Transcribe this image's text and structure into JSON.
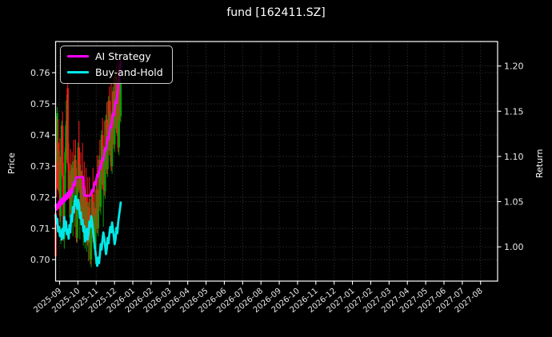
{
  "title": "fund [162411.SZ]",
  "legend": {
    "items": [
      {
        "label": "AI Strategy",
        "color": "#ff00ff"
      },
      {
        "label": "Buy-and-Hold",
        "color": "#00e8e8"
      }
    ]
  },
  "axes": {
    "left_label": "Price",
    "right_label": "Return"
  },
  "chart_data": {
    "type": "candlestick+line",
    "title": "fund [162411.SZ]",
    "background_color": "#000000",
    "grid": true,
    "legend_position": "upper-left",
    "x_axis": {
      "tick_labels": [
        "2025-09",
        "2025-10",
        "2025-11",
        "2025-12",
        "2026-01",
        "2026-02",
        "2026-03",
        "2026-04",
        "2026-05",
        "2026-06",
        "2026-07",
        "2026-08",
        "2026-09",
        "2026-10",
        "2026-11",
        "2026-12",
        "2027-01",
        "2027-02",
        "2027-03",
        "2027-04",
        "2027-05",
        "2027-06",
        "2027-07",
        "2027-08"
      ],
      "tick_rotation_deg": 40,
      "data_span_months": [
        -0.22,
        3.34
      ]
    },
    "price_axis": {
      "label": "Price",
      "tick_labels": [
        "0.70",
        "0.71",
        "0.72",
        "0.73",
        "0.74",
        "0.75",
        "0.76"
      ],
      "ticks": [
        0.7,
        0.71,
        0.72,
        0.73,
        0.74,
        0.75,
        0.76
      ],
      "range": [
        0.6931,
        0.77
      ]
    },
    "return_axis": {
      "label": "Return",
      "tick_labels": [
        "1.00",
        "1.05",
        "1.10",
        "1.15",
        "1.20"
      ],
      "ticks": [
        1.0,
        1.05,
        1.1,
        1.15,
        1.2
      ],
      "range": [
        0.9621,
        1.2271
      ]
    },
    "candle_up_color": "#00a000",
    "candle_down_color": "#ff1a1a",
    "candles_ohlc": [
      [
        0.715,
        0.716,
        0.7,
        0.701
      ],
      [
        0.744,
        0.746,
        0.72,
        0.723
      ],
      [
        0.7315,
        0.749,
        0.729,
        0.747
      ],
      [
        0.7375,
        0.745,
        0.722,
        0.7225
      ],
      [
        0.722,
        0.735,
        0.721,
        0.733
      ],
      [
        0.733,
        0.739,
        0.712,
        0.714
      ],
      [
        0.714,
        0.73,
        0.705,
        0.728
      ],
      [
        0.728,
        0.7445,
        0.727,
        0.743
      ],
      [
        0.743,
        0.7475,
        0.726,
        0.727
      ],
      [
        0.727,
        0.731,
        0.706,
        0.7065
      ],
      [
        0.7065,
        0.722,
        0.7035,
        0.7205
      ],
      [
        0.7205,
        0.736,
        0.719,
        0.7345
      ],
      [
        0.7345,
        0.7445,
        0.728,
        0.743
      ],
      [
        0.733,
        0.753,
        0.732,
        0.751
      ],
      [
        0.755,
        0.757,
        0.7305,
        0.731
      ],
      [
        0.731,
        0.7375,
        0.7195,
        0.72
      ],
      [
        0.72,
        0.7285,
        0.7135,
        0.727
      ],
      [
        0.727,
        0.7355,
        0.7145,
        0.716
      ],
      [
        0.716,
        0.7305,
        0.7145,
        0.729
      ],
      [
        0.729,
        0.7345,
        0.7185,
        0.72
      ],
      [
        0.72,
        0.7315,
        0.7075,
        0.7295
      ],
      [
        0.7295,
        0.7385,
        0.7225,
        0.7235
      ],
      [
        0.7235,
        0.7335,
        0.7105,
        0.732
      ],
      [
        0.732,
        0.7385,
        0.7245,
        0.7255
      ],
      [
        0.7255,
        0.7295,
        0.7055,
        0.707
      ],
      [
        0.707,
        0.7245,
        0.7055,
        0.723
      ],
      [
        0.723,
        0.7375,
        0.722,
        0.736
      ],
      [
        0.736,
        0.7445,
        0.7215,
        0.7225
      ],
      [
        0.7225,
        0.7305,
        0.7065,
        0.7285
      ],
      [
        0.7285,
        0.7345,
        0.7135,
        0.7145
      ],
      [
        0.7145,
        0.7285,
        0.7135,
        0.727
      ],
      [
        0.727,
        0.7375,
        0.7125,
        0.7135
      ],
      [
        0.7135,
        0.7255,
        0.7045,
        0.7235
      ],
      [
        0.7235,
        0.7315,
        0.7095,
        0.7105
      ],
      [
        0.7105,
        0.7225,
        0.7035,
        0.721
      ],
      [
        0.721,
        0.7295,
        0.7075,
        0.7085
      ],
      [
        0.7085,
        0.7185,
        0.7025,
        0.717
      ],
      [
        0.717,
        0.7265,
        0.7045,
        0.7055
      ],
      [
        0.7055,
        0.7185,
        0.6995,
        0.7165
      ],
      [
        0.7165,
        0.7265,
        0.7105,
        0.7115
      ],
      [
        0.7115,
        0.7195,
        0.6985,
        0.7
      ],
      [
        0.7,
        0.7125,
        0.6975,
        0.711
      ],
      [
        0.711,
        0.7225,
        0.7095,
        0.721
      ],
      [
        0.721,
        0.7295,
        0.7055,
        0.707
      ],
      [
        0.707,
        0.7185,
        0.7035,
        0.7165
      ],
      [
        0.7165,
        0.7255,
        0.7015,
        0.7035
      ],
      [
        0.7035,
        0.7155,
        0.6985,
        0.714
      ],
      [
        0.714,
        0.7245,
        0.7125,
        0.7225
      ],
      [
        0.7225,
        0.7335,
        0.7085,
        0.71
      ],
      [
        0.71,
        0.7225,
        0.7075,
        0.721
      ],
      [
        0.721,
        0.7335,
        0.7195,
        0.732
      ],
      [
        0.732,
        0.7385,
        0.7155,
        0.717
      ],
      [
        0.717,
        0.7295,
        0.7145,
        0.728
      ],
      [
        0.728,
        0.7415,
        0.7265,
        0.74
      ],
      [
        0.74,
        0.7455,
        0.7225,
        0.724
      ],
      [
        0.724,
        0.7365,
        0.7105,
        0.735
      ],
      [
        0.735,
        0.7445,
        0.7205,
        0.722
      ],
      [
        0.722,
        0.7355,
        0.7195,
        0.734
      ],
      [
        0.734,
        0.7465,
        0.7325,
        0.745
      ],
      [
        0.745,
        0.7505,
        0.7275,
        0.729
      ],
      [
        0.729,
        0.7415,
        0.7265,
        0.74
      ],
      [
        0.74,
        0.7525,
        0.7385,
        0.751
      ],
      [
        0.751,
        0.7555,
        0.7335,
        0.735
      ],
      [
        0.735,
        0.7475,
        0.7315,
        0.746
      ],
      [
        0.746,
        0.7565,
        0.7285,
        0.73
      ],
      [
        0.73,
        0.7445,
        0.7275,
        0.743
      ],
      [
        0.743,
        0.7555,
        0.7415,
        0.754
      ],
      [
        0.754,
        0.7585,
        0.7355,
        0.737
      ],
      [
        0.737,
        0.7515,
        0.7345,
        0.75
      ],
      [
        0.75,
        0.7605,
        0.7465,
        0.759
      ],
      [
        0.759,
        0.7625,
        0.7405,
        0.742
      ],
      [
        0.742,
        0.7565,
        0.7395,
        0.755
      ],
      [
        0.755,
        0.7635,
        0.7345,
        0.736
      ],
      [
        0.736,
        0.7585,
        0.7335,
        0.757
      ],
      [
        0.757,
        0.7625,
        0.7445,
        0.746
      ],
      [
        0.746,
        0.758,
        0.744,
        0.7565
      ]
    ],
    "series": [
      {
        "name": "AI Strategy",
        "axis": "return",
        "color": "#ff00ff",
        "width": 2.8,
        "values": [
          1.046,
          1.041,
          1.047,
          1.043,
          1.05,
          1.045,
          1.052,
          1.047,
          1.054,
          1.049,
          1.056,
          1.051,
          1.058,
          1.053,
          1.06,
          1.055,
          1.062,
          1.057,
          1.064,
          1.06,
          1.067,
          1.071,
          1.068,
          1.074,
          1.077,
          1.077,
          1.077,
          1.077,
          1.077,
          1.077,
          1.077,
          1.077,
          1.077,
          1.0565,
          1.0565,
          1.0565,
          1.0565,
          1.0565,
          1.0565,
          1.0565,
          1.0565,
          1.059,
          1.063,
          1.061,
          1.067,
          1.071,
          1.069,
          1.075,
          1.08,
          1.078,
          1.084,
          1.089,
          1.087,
          1.093,
          1.098,
          1.096,
          1.103,
          1.109,
          1.107,
          1.114,
          1.121,
          1.119,
          1.127,
          1.134,
          1.132,
          1.14,
          1.147,
          1.145,
          1.153,
          1.161,
          1.159,
          1.168,
          1.177,
          1.186,
          1.195,
          1.205
        ]
      },
      {
        "name": "Buy-and-Hold",
        "axis": "return",
        "color": "#00e8e8",
        "width": 2.8,
        "values": [
          1.035,
          1.026,
          1.031,
          1.017,
          1.022,
          1.012,
          1.018,
          1.008,
          1.02,
          1.01,
          1.033,
          1.018,
          1.028,
          1.014,
          1.019,
          1.009,
          1.024,
          1.016,
          1.035,
          1.028,
          1.044,
          1.038,
          1.051,
          1.056,
          1.048,
          1.042,
          1.052,
          1.046,
          1.032,
          1.038,
          1.025,
          1.03,
          1.017,
          1.023,
          1.006,
          1.012,
          1.02,
          1.008,
          1.015,
          1.028,
          1.022,
          1.034,
          1.028,
          1.019,
          1.01,
          1.002,
          0.994,
          0.985,
          0.979,
          0.988,
          0.982,
          0.992,
          1.003,
          0.997,
          1.008,
          1.016,
          1.01,
          1.001,
          0.992,
          0.998,
          1.01,
          1.004,
          1.015,
          1.022,
          1.016,
          1.027,
          1.02,
          1.012,
          1.003,
          1.008,
          1.021,
          1.015,
          1.027,
          1.034,
          1.041,
          1.049
        ]
      }
    ]
  }
}
